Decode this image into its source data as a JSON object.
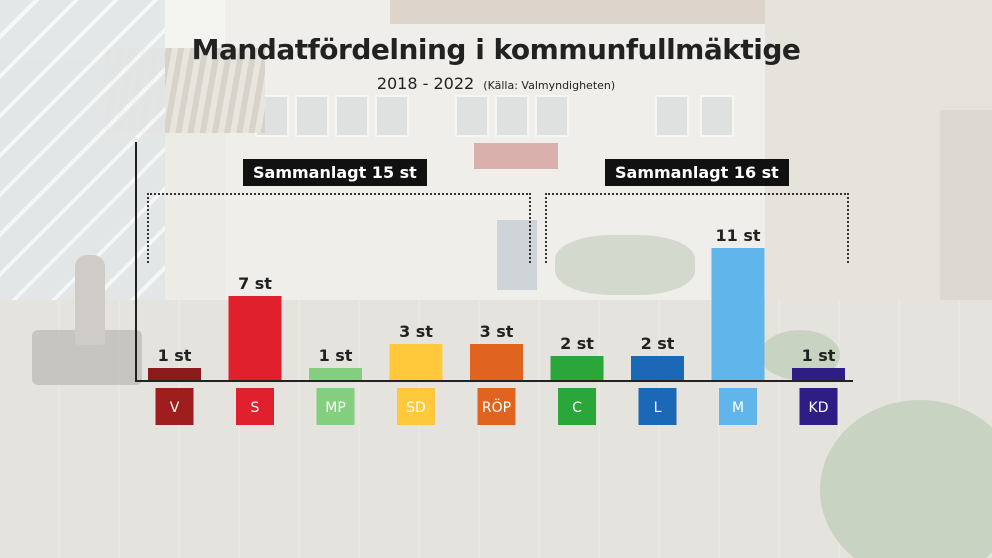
{
  "title": "Mandatfördelning i kommunfullmäktige",
  "subtitle": "2018 - 2022",
  "source": "(Källa: Valmyndigheten)",
  "groups": [
    {
      "label": "Sammanlagt 15 st",
      "parties": [
        "V",
        "S",
        "MP",
        "SD",
        "RÖP"
      ]
    },
    {
      "label": "Sammanlagt 16 st",
      "parties": [
        "C",
        "L",
        "M",
        "KD"
      ]
    }
  ],
  "chart_data": {
    "type": "bar",
    "title": "Mandatfördelning i kommunfullmäktige",
    "subtitle": "2018 - 2022",
    "categories": [
      "V",
      "S",
      "MP",
      "SD",
      "RÖP",
      "C",
      "L",
      "M",
      "KD"
    ],
    "values": [
      1,
      7,
      1,
      3,
      3,
      2,
      2,
      11,
      1
    ],
    "value_labels": [
      "1 st",
      "7 st",
      "1 st",
      "3 st",
      "3 st",
      "2 st",
      "2 st",
      "11 st",
      "1 st"
    ],
    "colors": [
      "#8b1a1a",
      "#e1202d",
      "#83cf7f",
      "#ffc93b",
      "#e0641f",
      "#2aa63b",
      "#1b69b6",
      "#60b6ea",
      "#2d1d85"
    ],
    "label_colors": [
      "#a01d1d",
      "#e1202d",
      "#83cf7f",
      "#ffc93b",
      "#e0641f",
      "#2aa63b",
      "#1b69b6",
      "#60b6ea",
      "#2d1d85"
    ],
    "ylim": [
      0,
      11
    ],
    "xlabel": "",
    "ylabel": "",
    "grid": false
  }
}
